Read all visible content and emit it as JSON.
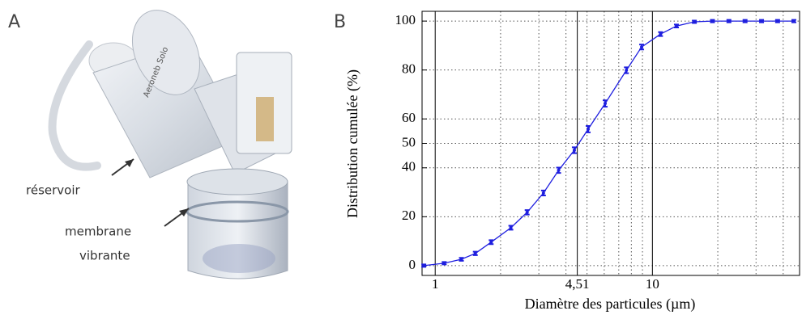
{
  "panels": [
    "A",
    "B"
  ],
  "photo": {
    "device_text": "Aeroneb Solo",
    "labels": [
      "réservoir",
      "membrane",
      "vibrante"
    ]
  },
  "chart_data": {
    "type": "line",
    "xlabel": "Diamètre des particules (µm)",
    "ylabel": "Distribution cumulée (%)",
    "xscale": "log",
    "x": [
      0.886,
      1.1,
      1.32,
      1.53,
      1.81,
      2.23,
      2.65,
      3.15,
      3.7,
      4.37,
      5.06,
      6.06,
      7.59,
      8.92,
      10.9,
      12.9,
      15.6,
      18.9,
      22.5,
      26.7,
      31.8,
      37.7,
      44.8
    ],
    "series": [
      {
        "color": "#1f1fdf",
        "values": [
          0,
          1,
          2.6,
          5,
          9.6,
          15.5,
          21.8,
          29.7,
          39,
          47.2,
          55.8,
          66.3,
          79.9,
          89.4,
          94.7,
          98,
          99.7,
          100,
          100,
          100,
          100,
          100,
          100
        ],
        "errors": [
          0.5,
          0.5,
          0.6,
          0.7,
          0.8,
          0.8,
          0.9,
          1,
          1.1,
          1.2,
          1.3,
          1.3,
          1.2,
          1,
          0.8,
          0.6,
          0.5,
          0.5,
          0.5,
          0.5,
          0.5,
          0.5,
          0.5
        ]
      }
    ],
    "xlim": [
      0.87,
      48
    ],
    "ylim": [
      -4,
      104
    ],
    "xticks": [
      1,
      {
        "value": 4.51,
        "label": "4,51"
      },
      10
    ],
    "xgrid_minor": [
      2,
      3,
      4,
      5,
      6,
      7,
      8,
      9,
      20,
      30,
      40
    ],
    "yticks": [
      0,
      20,
      40,
      50,
      60,
      80,
      100
    ],
    "grid": true
  }
}
